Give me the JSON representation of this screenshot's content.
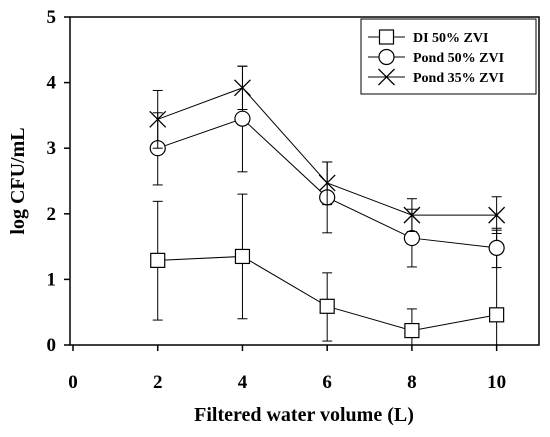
{
  "chart_data": {
    "type": "line",
    "title": "",
    "xlabel": "Filtered water volume (L)",
    "ylabel": "log CFU/mL",
    "xlim": [
      0,
      11
    ],
    "ylim": [
      0,
      5
    ],
    "xticks": [
      0,
      2,
      4,
      6,
      8,
      10
    ],
    "yticks": [
      0,
      1,
      2,
      3,
      4,
      5
    ],
    "x_tick_labels": [
      "0",
      "2",
      "4",
      "6",
      "8",
      "10"
    ],
    "y_tick_labels": [
      "0",
      "1",
      "2",
      "3",
      "4",
      "5"
    ],
    "grid": false,
    "legend_position": "top-right",
    "series": [
      {
        "name": "DI 50% ZVI",
        "marker": "square",
        "x": [
          2,
          4,
          6,
          8,
          10
        ],
        "y": [
          1.29,
          1.35,
          0.59,
          0.22,
          0.46
        ],
        "err_low": [
          0.38,
          0.4,
          0.06,
          0.0,
          0.0
        ],
        "err_high": [
          2.19,
          2.3,
          1.1,
          0.55,
          1.75
        ]
      },
      {
        "name": "Pond 50% ZVI",
        "marker": "circle",
        "x": [
          2,
          4,
          6,
          8,
          10
        ],
        "y": [
          3.0,
          3.45,
          2.25,
          1.63,
          1.48
        ],
        "err_low": [
          2.44,
          2.64,
          1.71,
          1.19,
          1.18
        ],
        "err_high": [
          3.54,
          4.25,
          2.79,
          2.07,
          1.78
        ]
      },
      {
        "name": "Pond 35% ZVI",
        "marker": "x",
        "x": [
          2,
          4,
          6,
          8,
          10
        ],
        "y": [
          3.44,
          3.92,
          2.47,
          1.98,
          1.98
        ],
        "err_low": [
          3.0,
          3.59,
          2.14,
          1.73,
          1.7
        ],
        "err_high": [
          3.88,
          4.25,
          2.79,
          2.23,
          2.26
        ]
      }
    ]
  }
}
